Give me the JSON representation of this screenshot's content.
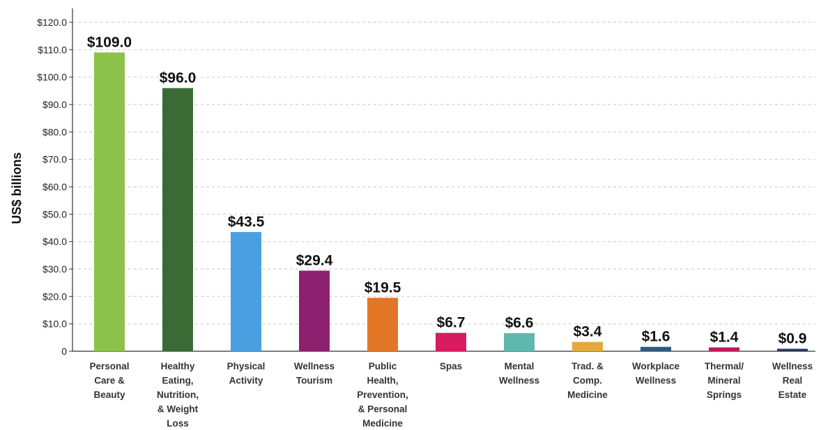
{
  "chart_data": {
    "type": "bar",
    "ylabel": "US$ billions",
    "ylim": [
      0,
      120
    ],
    "yticks": [
      "0",
      "$10.0",
      "$20.0",
      "$30.0",
      "$40.0",
      "$50.0",
      "$60.0",
      "$70.0",
      "$80.0",
      "$90.0",
      "$100.0",
      "$110.0",
      "$120.0"
    ],
    "grid": true,
    "categories": [
      "Personal Care & Beauty",
      "Healthy Eating, Nutrition, & Weight Loss",
      "Physical Activity",
      "Wellness Tourism",
      "Public Health, Prevention, & Personal Medicine",
      "Spas",
      "Mental Wellness",
      "Trad. & Comp. Medicine",
      "Workplace Wellness",
      "Thermal/ Mineral Springs",
      "Wellness Real Estate"
    ],
    "category_lines": [
      [
        "Personal",
        "Care &",
        "Beauty"
      ],
      [
        "Healthy",
        "Eating,",
        "Nutrition,",
        "& Weight",
        "Loss"
      ],
      [
        "Physical",
        "Activity"
      ],
      [
        "Wellness",
        "Tourism"
      ],
      [
        "Public",
        "Health,",
        "Prevention,",
        "& Personal",
        "Medicine"
      ],
      [
        "Spas"
      ],
      [
        "Mental",
        "Wellness"
      ],
      [
        "Trad. &",
        "Comp.",
        "Medicine"
      ],
      [
        "Workplace",
        "Wellness"
      ],
      [
        "Thermal/",
        "Mineral",
        "Springs"
      ],
      [
        "Wellness",
        "Real",
        "Estate"
      ]
    ],
    "values": [
      109.0,
      96.0,
      43.5,
      29.4,
      19.5,
      6.7,
      6.6,
      3.4,
      1.6,
      1.4,
      0.9
    ],
    "data_labels": [
      "$109.0",
      "$96.0",
      "$43.5",
      "$29.4",
      "$19.5",
      "$6.7",
      "$6.6",
      "$3.4",
      "$1.6",
      "$1.4",
      "$0.9"
    ],
    "colors": [
      "#8bc34a",
      "#3a6b35",
      "#4a9fe0",
      "#8e1f6e",
      "#e37527",
      "#d81b60",
      "#5fb8b0",
      "#e4a93a",
      "#2e5a7e",
      "#c2185b",
      "#243a5e"
    ]
  }
}
